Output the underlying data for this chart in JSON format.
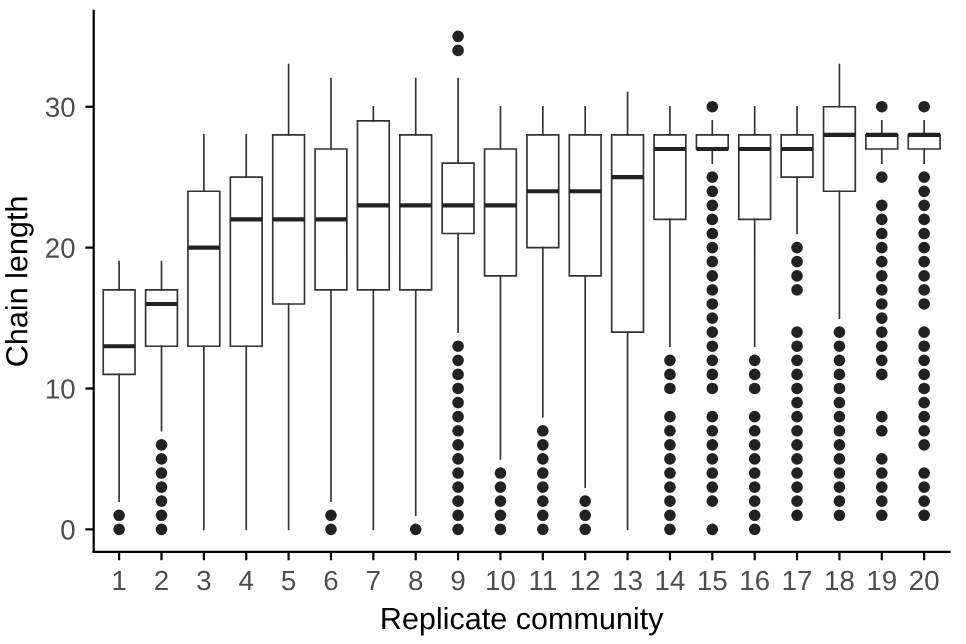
{
  "chart_data": {
    "type": "box",
    "xlabel": "Replicate community",
    "ylabel": "Chain length",
    "categories": [
      "1",
      "2",
      "3",
      "4",
      "5",
      "6",
      "7",
      "8",
      "9",
      "10",
      "11",
      "12",
      "13",
      "14",
      "15",
      "16",
      "17",
      "18",
      "19",
      "20"
    ],
    "boxes": [
      {
        "low": 2,
        "q1": 11,
        "median": 13,
        "q3": 17,
        "high": 19,
        "outliers": [
          0,
          1
        ]
      },
      {
        "low": 7,
        "q1": 13,
        "median": 16,
        "q3": 17,
        "high": 19,
        "outliers": [
          0,
          1,
          2,
          3,
          4,
          5,
          6
        ]
      },
      {
        "low": 0,
        "q1": 13,
        "median": 20,
        "q3": 24,
        "high": 28
      },
      {
        "low": 0,
        "q1": 13,
        "median": 22,
        "q3": 25,
        "high": 28
      },
      {
        "low": 0,
        "q1": 16,
        "median": 22,
        "q3": 28,
        "high": 33
      },
      {
        "low": 2,
        "q1": 17,
        "median": 22,
        "q3": 27,
        "high": 32,
        "outliers": [
          0,
          1
        ]
      },
      {
        "low": 0,
        "q1": 17,
        "median": 23,
        "q3": 29,
        "high": 30
      },
      {
        "low": 1,
        "q1": 17,
        "median": 23,
        "q3": 28,
        "high": 32,
        "outliers": [
          0
        ]
      },
      {
        "low": 14,
        "q1": 21,
        "median": 23,
        "q3": 26,
        "high": 32,
        "outliers": [
          0,
          1,
          2,
          3,
          4,
          5,
          6,
          7,
          8,
          9,
          10,
          11,
          12,
          13,
          34,
          35
        ]
      },
      {
        "low": 5,
        "q1": 18,
        "median": 23,
        "q3": 27,
        "high": 30,
        "outliers": [
          0,
          1,
          2,
          3,
          4
        ]
      },
      {
        "low": 8,
        "q1": 20,
        "median": 24,
        "q3": 28,
        "high": 30,
        "outliers": [
          0,
          1,
          2,
          3,
          4,
          5,
          6,
          7
        ]
      },
      {
        "low": 3,
        "q1": 18,
        "median": 24,
        "q3": 28,
        "high": 30,
        "outliers": [
          0,
          1,
          2
        ]
      },
      {
        "low": 0,
        "q1": 14,
        "median": 25,
        "q3": 28,
        "high": 31
      },
      {
        "low": 13,
        "q1": 22,
        "median": 27,
        "q3": 28,
        "high": 30,
        "outliers": [
          0,
          1,
          2,
          3,
          4,
          5,
          6,
          7,
          8,
          10,
          11,
          12
        ]
      },
      {
        "low": 26,
        "q1": 27,
        "median": 27,
        "q3": 28,
        "high": 29,
        "outliers": [
          0,
          2,
          3,
          4,
          5,
          6,
          7,
          8,
          10,
          11,
          12,
          13,
          14,
          15,
          16,
          17,
          18,
          19,
          20,
          21,
          22,
          23,
          24,
          25,
          30
        ]
      },
      {
        "low": 13,
        "q1": 22,
        "median": 27,
        "q3": 28,
        "high": 30,
        "outliers": [
          0,
          1,
          2,
          3,
          4,
          5,
          6,
          7,
          8,
          10,
          11,
          12
        ]
      },
      {
        "low": 21,
        "q1": 25,
        "median": 27,
        "q3": 28,
        "high": 30,
        "outliers": [
          1,
          2,
          3,
          4,
          5,
          6,
          7,
          8,
          9,
          10,
          11,
          12,
          13,
          14,
          17,
          18,
          19,
          20
        ]
      },
      {
        "low": 15,
        "q1": 24,
        "median": 28,
        "q3": 30,
        "high": 33,
        "outliers": [
          1,
          2,
          3,
          4,
          5,
          6,
          7,
          8,
          9,
          10,
          11,
          12,
          13,
          14
        ]
      },
      {
        "low": 26,
        "q1": 27,
        "median": 28,
        "q3": 28,
        "high": 29,
        "outliers": [
          1,
          2,
          3,
          4,
          5,
          7,
          8,
          11,
          12,
          13,
          14,
          15,
          16,
          17,
          18,
          19,
          20,
          21,
          22,
          23,
          25,
          30
        ]
      },
      {
        "low": 26,
        "q1": 27,
        "median": 28,
        "q3": 28,
        "high": 29,
        "outliers": [
          1,
          2,
          3,
          4,
          6,
          7,
          8,
          9,
          10,
          11,
          12,
          13,
          14,
          16,
          17,
          18,
          19,
          20,
          21,
          22,
          23,
          24,
          25,
          30
        ]
      }
    ],
    "ylim": [
      -1.6,
      36.8
    ],
    "yticks": [
      0,
      10,
      20,
      30
    ],
    "grid": false,
    "legend": false
  }
}
